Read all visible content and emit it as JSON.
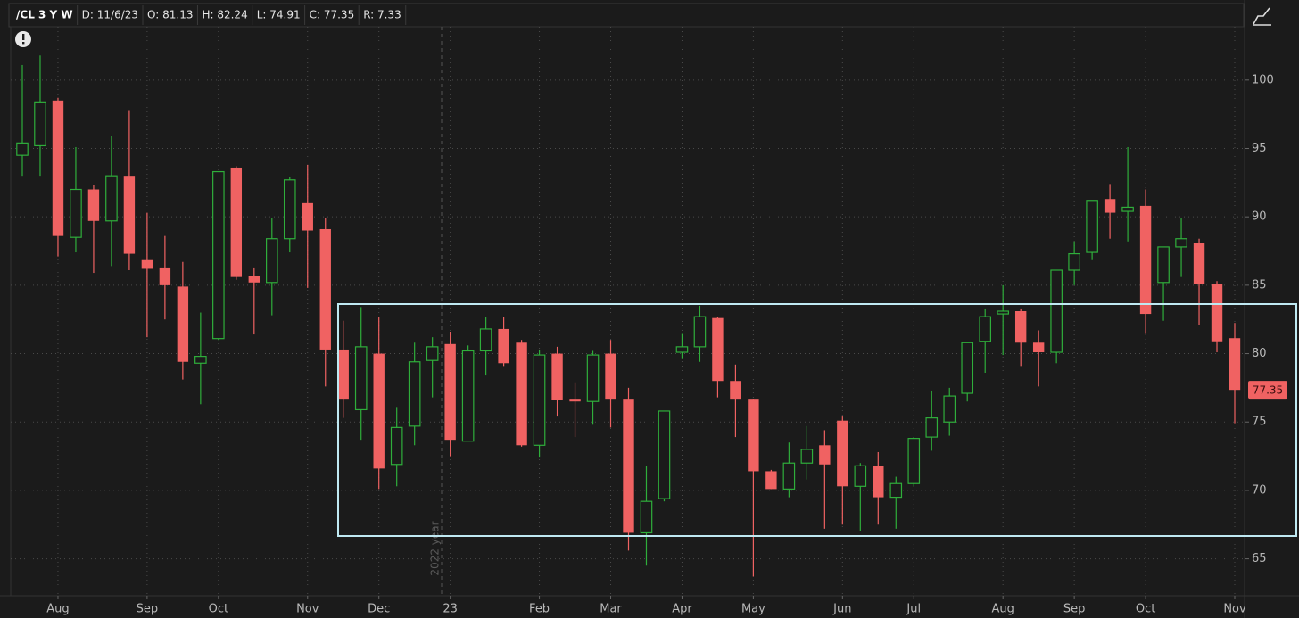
{
  "chart_data": {
    "type": "candlestick",
    "title": "/CL 3 Y W",
    "header_fields": [
      "D: 11/6/23",
      "O: 81.13",
      "H: 82.24",
      "L: 74.91",
      "C: 77.35",
      "R: 7.33"
    ],
    "annotation": "2022 year",
    "categories": [
      null,
      null,
      "Aug",
      null,
      null,
      null,
      null,
      "Sep",
      null,
      null,
      null,
      "Oct",
      null,
      null,
      null,
      null,
      "Nov",
      null,
      null,
      null,
      "Dec",
      null,
      null,
      null,
      "23",
      null,
      null,
      null,
      null,
      "Feb",
      null,
      null,
      null,
      "Mar",
      null,
      null,
      null,
      "Apr",
      null,
      null,
      null,
      "May",
      null,
      null,
      null,
      null,
      "Jun",
      null,
      null,
      null,
      "Jul",
      null,
      null,
      null,
      null,
      "Aug",
      null,
      null,
      null,
      "Sep",
      null,
      null,
      null,
      "Oct",
      null,
      null,
      null,
      null,
      "Nov"
    ],
    "open": [
      94.5,
      95.2,
      98.5,
      88.5,
      92.0,
      89.7,
      93.0,
      86.9,
      86.3,
      84.9,
      79.3,
      81.1,
      93.6,
      85.7,
      85.2,
      88.4,
      91.0,
      89.1,
      80.3,
      75.9,
      80.0,
      71.9,
      74.7,
      79.5,
      80.7,
      73.6,
      80.2,
      81.8,
      80.8,
      73.3,
      80.0,
      76.7,
      76.5,
      80.0,
      76.7,
      66.9,
      69.4,
      80.1,
      80.5,
      82.6,
      78.0,
      76.7,
      71.4,
      70.1,
      72.0,
      73.3,
      75.1,
      70.3,
      71.8,
      69.5,
      70.5,
      73.9,
      75.0,
      77.1,
      80.9,
      82.9,
      83.1,
      80.8,
      80.1,
      86.1,
      87.4,
      91.3,
      90.4,
      90.8,
      85.2,
      87.8,
      88.1,
      85.1,
      81.13
    ],
    "high": [
      101.1,
      101.8,
      98.7,
      95.1,
      92.3,
      95.9,
      97.8,
      90.3,
      88.6,
      86.7,
      83.0,
      93.3,
      93.7,
      86.3,
      89.9,
      92.9,
      93.8,
      89.9,
      82.4,
      83.4,
      82.7,
      76.1,
      80.8,
      81.2,
      81.6,
      80.6,
      82.7,
      82.7,
      81.0,
      80.3,
      80.5,
      77.9,
      80.2,
      81.0,
      77.5,
      71.8,
      75.8,
      81.5,
      83.5,
      82.7,
      79.2,
      76.7,
      71.5,
      73.5,
      74.7,
      74.4,
      75.4,
      72.0,
      72.8,
      71.0,
      73.9,
      77.3,
      77.5,
      80.8,
      83.3,
      85.0,
      83.3,
      81.7,
      86.1,
      88.2,
      91.2,
      92.4,
      95.1,
      92.0,
      87.8,
      89.9,
      88.4,
      85.3,
      82.24
    ],
    "low": [
      93.0,
      93.0,
      87.1,
      87.4,
      85.9,
      86.4,
      86.1,
      81.2,
      82.5,
      78.1,
      76.3,
      81.0,
      85.4,
      81.4,
      82.8,
      87.4,
      84.8,
      77.6,
      75.3,
      73.7,
      70.1,
      70.3,
      73.3,
      76.8,
      72.5,
      73.6,
      78.4,
      79.1,
      73.2,
      72.4,
      75.4,
      73.9,
      74.8,
      74.6,
      65.6,
      64.5,
      69.2,
      79.6,
      79.4,
      76.8,
      73.9,
      63.7,
      70.1,
      69.5,
      70.8,
      67.2,
      67.5,
      67.0,
      67.5,
      67.2,
      70.3,
      72.9,
      74.0,
      76.5,
      78.6,
      79.9,
      79.1,
      77.6,
      79.3,
      85.0,
      86.9,
      88.4,
      88.2,
      81.5,
      82.4,
      85.6,
      82.1,
      80.1,
      74.91
    ],
    "close": [
      95.4,
      98.4,
      88.6,
      92.0,
      89.7,
      93.0,
      87.3,
      86.2,
      85.0,
      79.4,
      79.8,
      93.3,
      85.6,
      85.2,
      88.4,
      92.7,
      89.0,
      80.3,
      76.7,
      80.5,
      71.6,
      74.6,
      79.4,
      80.5,
      73.7,
      80.2,
      81.8,
      79.3,
      73.3,
      79.9,
      76.6,
      76.5,
      79.9,
      76.7,
      66.9,
      69.2,
      75.8,
      80.5,
      82.7,
      78.0,
      76.7,
      71.4,
      70.1,
      72.0,
      73.0,
      71.9,
      70.3,
      71.8,
      69.5,
      70.5,
      73.8,
      75.3,
      76.9,
      80.8,
      82.7,
      83.1,
      80.8,
      80.1,
      86.1,
      87.3,
      91.2,
      90.3,
      90.7,
      82.9,
      87.8,
      88.4,
      85.1,
      80.9,
      77.35
    ],
    "up_color": "#2fae3b",
    "down_color": "#f06262",
    "ylim": [
      62.3,
      103.9
    ],
    "yticks": [
      65,
      70,
      75,
      80,
      85,
      90,
      95,
      100
    ],
    "grid": true
  }
}
